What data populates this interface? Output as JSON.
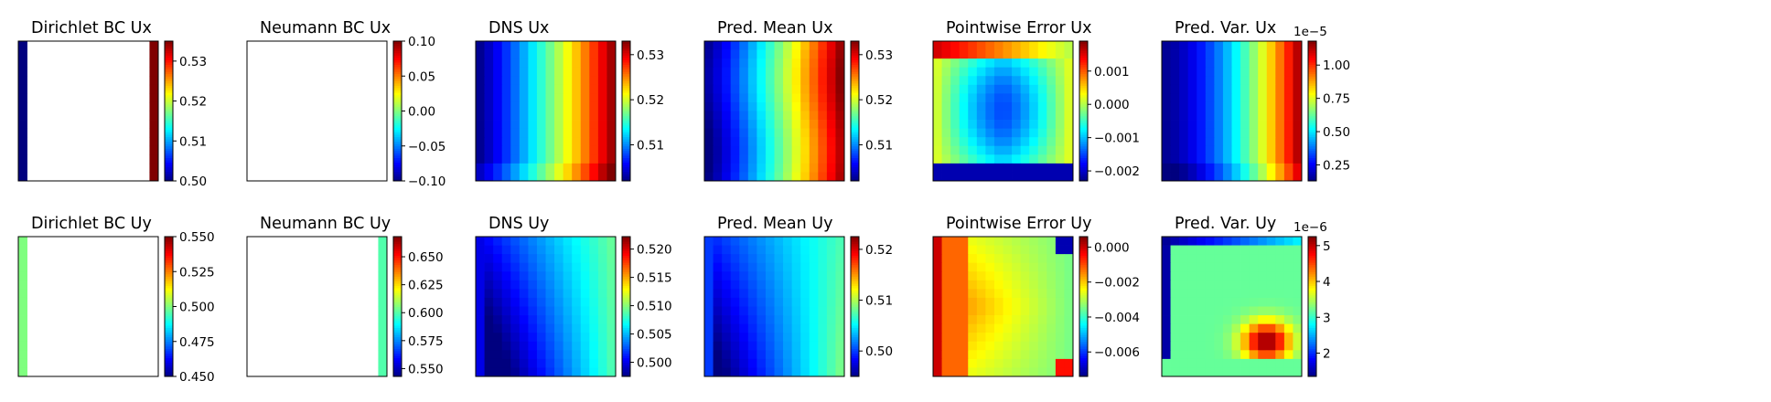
{
  "colormap": "jet",
  "colors": {
    "jet": [
      "#00007f",
      "#0000ff",
      "#007fff",
      "#00ffff",
      "#7fff7f",
      "#ffff00",
      "#ff7f00",
      "#ff0000",
      "#7f0000"
    ],
    "frame": "#000000",
    "background": "#ffffff"
  },
  "chart_data": [
    {
      "type": "heatmap",
      "title": "Dirichlet BC Ux",
      "field": "dirichlet_ux",
      "clim": [
        0.5,
        0.535
      ],
      "colorbar_ticks": [
        0.5,
        0.51,
        0.52,
        0.53
      ],
      "colorbar_tick_labels": [
        "0.50",
        "0.51",
        "0.52",
        "0.53"
      ],
      "colorbar_exponent": ""
    },
    {
      "type": "heatmap",
      "title": "Neumann BC Ux",
      "field": "empty",
      "clim": [
        -0.1,
        0.1
      ],
      "colorbar_ticks": [
        -0.1,
        -0.05,
        0.0,
        0.05,
        0.1
      ],
      "colorbar_tick_labels": [
        "−0.10",
        "−0.05",
        "0.00",
        "0.05",
        "0.10"
      ],
      "colorbar_exponent": ""
    },
    {
      "type": "heatmap",
      "title": "DNS Ux",
      "field": "dns_ux",
      "clim": [
        0.502,
        0.533
      ],
      "colorbar_ticks": [
        0.51,
        0.52,
        0.53
      ],
      "colorbar_tick_labels": [
        "0.51",
        "0.52",
        "0.53"
      ],
      "colorbar_exponent": ""
    },
    {
      "type": "heatmap",
      "title": "Pred. Mean Ux",
      "field": "pred_mean_ux",
      "clim": [
        0.502,
        0.533
      ],
      "colorbar_ticks": [
        0.51,
        0.52,
        0.53
      ],
      "colorbar_tick_labels": [
        "0.51",
        "0.52",
        "0.53"
      ],
      "colorbar_exponent": ""
    },
    {
      "type": "heatmap",
      "title": "Pointwise Error Ux",
      "field": "error_ux",
      "clim": [
        -0.0023,
        0.0019
      ],
      "colorbar_ticks": [
        -0.002,
        -0.001,
        0.0,
        0.001
      ],
      "colorbar_tick_labels": [
        "−0.002",
        "−0.001",
        "0.000",
        "0.001"
      ],
      "colorbar_exponent": ""
    },
    {
      "type": "heatmap",
      "title": "Pred. Var. Ux",
      "field": "pred_var_ux",
      "clim": [
        0.13,
        1.18
      ],
      "colorbar_ticks": [
        0.25,
        0.5,
        0.75,
        1.0
      ],
      "colorbar_tick_labels": [
        "0.25",
        "0.50",
        "0.75",
        "1.00"
      ],
      "colorbar_exponent": "1e−5"
    },
    {
      "type": "heatmap",
      "title": "Dirichlet BC Uy",
      "field": "dirichlet_uy",
      "clim": [
        0.45,
        0.55
      ],
      "colorbar_ticks": [
        0.45,
        0.475,
        0.5,
        0.525,
        0.55
      ],
      "colorbar_tick_labels": [
        "0.450",
        "0.475",
        "0.500",
        "0.525",
        "0.550"
      ],
      "colorbar_exponent": ""
    },
    {
      "type": "heatmap",
      "title": "Neumann BC Uy",
      "field": "neumann_uy",
      "clim": [
        0.543,
        0.668
      ],
      "colorbar_ticks": [
        0.55,
        0.575,
        0.6,
        0.625,
        0.65
      ],
      "colorbar_tick_labels": [
        "0.550",
        "0.575",
        "0.600",
        "0.625",
        "0.650"
      ],
      "colorbar_exponent": ""
    },
    {
      "type": "heatmap",
      "title": "DNS Uy",
      "field": "dns_uy",
      "clim": [
        0.4975,
        0.5222
      ],
      "colorbar_ticks": [
        0.5,
        0.505,
        0.51,
        0.515,
        0.52
      ],
      "colorbar_tick_labels": [
        "0.500",
        "0.505",
        "0.510",
        "0.515",
        "0.520"
      ],
      "colorbar_exponent": ""
    },
    {
      "type": "heatmap",
      "title": "Pred. Mean Uy",
      "field": "pred_mean_uy",
      "clim": [
        0.495,
        0.5225
      ],
      "colorbar_ticks": [
        0.5,
        0.51,
        0.52
      ],
      "colorbar_tick_labels": [
        "0.50",
        "0.51",
        "0.52"
      ],
      "colorbar_exponent": ""
    },
    {
      "type": "heatmap",
      "title": "Pointwise Error Uy",
      "field": "error_uy",
      "clim": [
        -0.0074,
        0.0006
      ],
      "colorbar_ticks": [
        -0.006,
        -0.004,
        -0.002,
        0.0
      ],
      "colorbar_tick_labels": [
        "−0.006",
        "−0.004",
        "−0.002",
        "0.000"
      ],
      "colorbar_exponent": ""
    },
    {
      "type": "heatmap",
      "title": "Pred. Var. Uy",
      "field": "pred_var_uy",
      "clim": [
        1.35,
        5.25
      ],
      "colorbar_ticks": [
        2,
        3,
        4,
        5
      ],
      "colorbar_tick_labels": [
        "2",
        "3",
        "4",
        "5"
      ],
      "colorbar_exponent": "1e−6"
    }
  ]
}
